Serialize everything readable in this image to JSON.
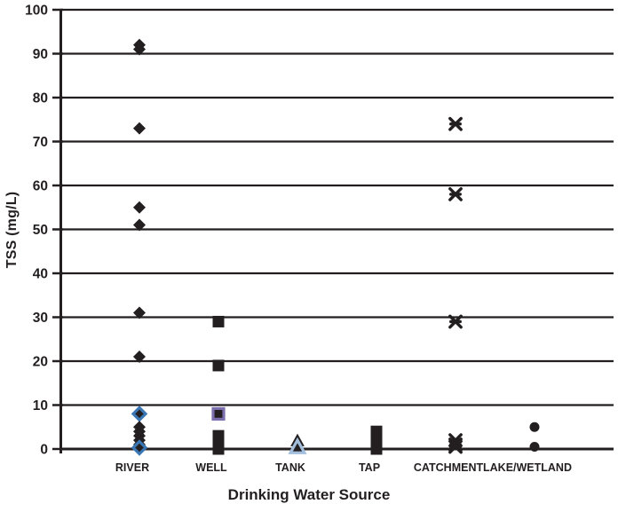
{
  "figure": {
    "xlabel": "Drinking Water Source",
    "ylabel": "TSS (mg/L)"
  },
  "chart_data": {
    "type": "scatter",
    "title": "",
    "xlabel": "Drinking Water Source",
    "ylabel": "TSS (mg/L)",
    "ylim": [
      0,
      100
    ],
    "yticks": [
      0,
      10,
      20,
      30,
      40,
      50,
      60,
      70,
      80,
      90,
      100
    ],
    "grid": "horizontal",
    "legend": "none",
    "categories": [
      "RIVER",
      "WELL",
      "TANK",
      "TAP",
      "CATCHMENT",
      "LAKE/WETLAND"
    ],
    "colors": {
      "marker": "#231f20",
      "grid": "#231f20",
      "river_outline": "#3b76b5",
      "well_outline": "#7b6fae",
      "tank_outline": "#a3bedc"
    },
    "series": [
      {
        "name": "RIVER",
        "marker": "diamond",
        "points": [
          92,
          91,
          73,
          55,
          51,
          31,
          21,
          {
            "v": 8,
            "outline": "river_outline"
          },
          5,
          4,
          3,
          2,
          1,
          {
            "v": 0.3,
            "outline": "river_outline"
          }
        ]
      },
      {
        "name": "WELL",
        "marker": "square",
        "points": [
          29,
          19,
          {
            "v": 8,
            "outline": "well_outline"
          },
          3,
          2,
          1,
          0
        ]
      },
      {
        "name": "TANK",
        "marker": "triangle",
        "points": [
          2,
          {
            "v": 0.5,
            "outline": "tank_outline"
          }
        ]
      },
      {
        "name": "TAP",
        "marker": "square",
        "points": [
          4,
          3,
          2,
          1,
          0
        ]
      },
      {
        "name": "CATCHMENT",
        "marker": "star",
        "points": [
          74,
          58,
          29,
          2,
          1,
          0.5
        ]
      },
      {
        "name": "LAKE/WETLAND",
        "marker": "circle",
        "points": [
          5,
          0.5
        ]
      }
    ]
  }
}
